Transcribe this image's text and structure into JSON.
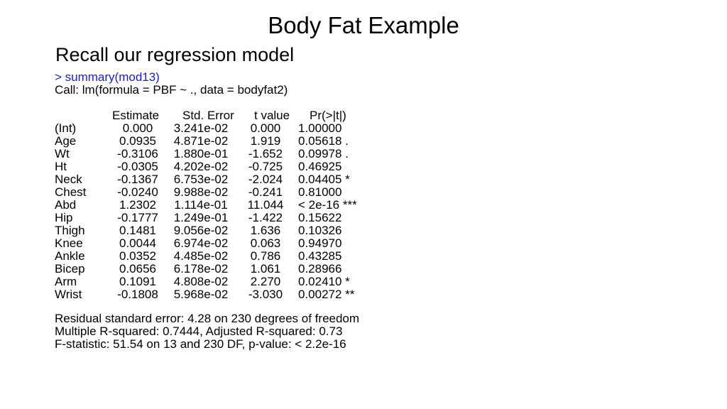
{
  "slide": {
    "title": "Body Fat Example",
    "subtitle": "Recall our regression model",
    "command": "> summary(mod13)",
    "call": "Call:  lm(formula = PBF ~ ., data = bodyfat2)",
    "table": {
      "headers": [
        "Estimate",
        "Std. Error",
        "t value",
        "Pr(>|t|)"
      ],
      "rows": [
        {
          "name": "(Int)",
          "estimate": "0.000",
          "std_error": "3.241e-02",
          "t_value": "0.000",
          "p_value": "1.00000"
        },
        {
          "name": "Age",
          "estimate": "0.0935",
          "std_error": "4.871e-02",
          "t_value": "1.919",
          "p_value": "0.05618 ."
        },
        {
          "name": "Wt",
          "estimate": "-0.3106",
          "std_error": "1.880e-01",
          "t_value": "-1.652",
          "p_value": "0.09978 ."
        },
        {
          "name": "Ht",
          "estimate": "-0.0305",
          "std_error": "4.202e-02",
          "t_value": "-0.725",
          "p_value": "0.46925"
        },
        {
          "name": "Neck",
          "estimate": "-0.1367",
          "std_error": "6.753e-02",
          "t_value": "-2.024",
          "p_value": "0.04405 *"
        },
        {
          "name": "Chest",
          "estimate": "-0.0240",
          "std_error": "9.988e-02",
          "t_value": "-0.241",
          "p_value": "0.81000"
        },
        {
          "name": "Abd",
          "estimate": "1.2302",
          "std_error": "1.114e-01",
          "t_value": "11.044",
          "p_value": "< 2e-16 ***"
        },
        {
          "name": "Hip",
          "estimate": "-0.1777",
          "std_error": "1.249e-01",
          "t_value": "-1.422",
          "p_value": "0.15622"
        },
        {
          "name": "Thigh",
          "estimate": "0.1481",
          "std_error": "9.056e-02",
          "t_value": "1.636",
          "p_value": "0.10326"
        },
        {
          "name": "Knee",
          "estimate": "0.0044",
          "std_error": "6.974e-02",
          "t_value": "0.063",
          "p_value": "0.94970"
        },
        {
          "name": "Ankle",
          "estimate": "0.0352",
          "std_error": "4.485e-02",
          "t_value": "0.786",
          "p_value": "0.43285"
        },
        {
          "name": "Bicep",
          "estimate": "0.0656",
          "std_error": "6.178e-02",
          "t_value": "1.061",
          "p_value": "0.28966"
        },
        {
          "name": "Arm",
          "estimate": "0.1091",
          "std_error": "4.808e-02",
          "t_value": "2.270",
          "p_value": "0.02410 *"
        },
        {
          "name": "Wrist",
          "estimate": "-0.1808",
          "std_error": "5.968e-02",
          "t_value": "-3.030",
          "p_value": "0.00272 **"
        }
      ]
    },
    "footer": {
      "residual": "Residual standard error: 4.28 on 230 degrees of freedom",
      "rsquared": "Multiple R-squared: 0.7444,     Adjusted R-squared:  0.73",
      "fstat": "F-statistic: 51.54 on 13 and 230 DF,  p-value: < 2.2e-16"
    },
    "colors": {
      "command_text": "#1a1adc",
      "text": "#000000",
      "background": "#ffffff"
    }
  }
}
